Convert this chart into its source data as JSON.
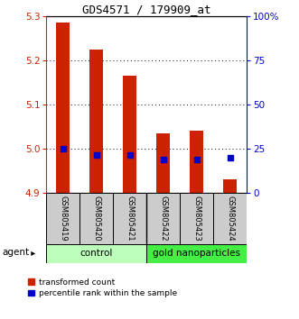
{
  "title": "GDS4571 / 179909_at",
  "samples": [
    "GSM805419",
    "GSM805420",
    "GSM805421",
    "GSM805422",
    "GSM805423",
    "GSM805424"
  ],
  "bar_values": [
    5.285,
    5.225,
    5.165,
    5.035,
    5.04,
    4.93
  ],
  "bar_base": 4.9,
  "percentile_values": [
    5.0,
    4.985,
    4.985,
    4.975,
    4.975,
    4.98
  ],
  "ylim": [
    4.9,
    5.3
  ],
  "y2lim": [
    0,
    100
  ],
  "yticks": [
    4.9,
    5.0,
    5.1,
    5.2,
    5.3
  ],
  "y2ticks": [
    0,
    25,
    50,
    75,
    100
  ],
  "y2ticklabels": [
    "0",
    "25",
    "50",
    "75",
    "100%"
  ],
  "bar_color": "#cc2200",
  "dot_color": "#0000cc",
  "sample_bg_color": "#cccccc",
  "control_color": "#bbffbb",
  "gold_color": "#44ee44",
  "bar_width": 0.4,
  "agent_label": "agent"
}
